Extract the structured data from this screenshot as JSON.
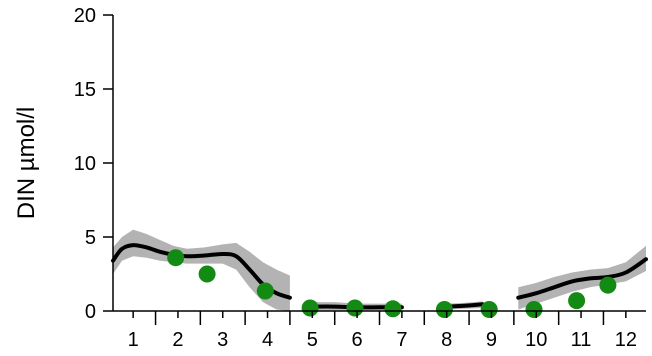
{
  "chart_data": {
    "type": "line",
    "ylabel": "DIN µmol/l",
    "xlabel": "",
    "xlim": [
      0.55,
      12.45
    ],
    "ylim": [
      0,
      20
    ],
    "x_ticks": [
      1,
      2,
      3,
      4,
      5,
      6,
      7,
      8,
      9,
      10,
      11,
      12
    ],
    "y_ticks": [
      0,
      5,
      10,
      15,
      20
    ],
    "grid": false,
    "colors": {
      "line": "#000000",
      "band": "#b3b3b3",
      "points": "#138a13"
    },
    "series": [
      {
        "type": "line-with-band",
        "segments": [
          {
            "x": [
              0.55,
              0.75,
              1.0,
              1.3,
              1.6,
              1.9,
              2.2,
              2.6,
              3.0,
              3.3,
              3.6,
              3.9,
              4.2,
              4.5
            ],
            "y": [
              3.4,
              4.2,
              4.45,
              4.3,
              4.0,
              3.8,
              3.7,
              3.75,
              3.85,
              3.7,
              2.8,
              1.8,
              1.2,
              0.9
            ],
            "lower": [
              2.5,
              3.4,
              3.7,
              3.6,
              3.4,
              3.3,
              3.2,
              3.2,
              3.2,
              2.8,
              1.6,
              0.6,
              0.1,
              0.0
            ],
            "upper": [
              4.3,
              5.0,
              5.5,
              5.2,
              4.8,
              4.4,
              4.2,
              4.3,
              4.5,
              4.6,
              4.0,
              3.3,
              2.8,
              2.4
            ]
          },
          {
            "x": [
              5.0,
              5.5,
              6.0,
              6.5,
              7.0
            ],
            "y": [
              0.3,
              0.3,
              0.25,
              0.25,
              0.25
            ],
            "lower": [
              0.05,
              0.05,
              0.05,
              0.05,
              0.05
            ],
            "upper": [
              0.6,
              0.6,
              0.5,
              0.5,
              0.5
            ]
          },
          {
            "x": [
              8.0,
              8.4,
              8.8
            ],
            "y": [
              0.3,
              0.35,
              0.45
            ],
            "lower": [
              0.1,
              0.15,
              0.2
            ],
            "upper": [
              0.5,
              0.55,
              0.65
            ]
          },
          {
            "x": [
              9.6,
              10.0,
              10.4,
              10.8,
              11.2,
              11.6,
              12.0,
              12.45
            ],
            "y": [
              0.9,
              1.2,
              1.6,
              2.0,
              2.2,
              2.3,
              2.6,
              3.5
            ],
            "lower": [
              0.1,
              0.5,
              0.9,
              1.3,
              1.6,
              1.8,
              2.0,
              2.7
            ],
            "upper": [
              1.6,
              1.9,
              2.3,
              2.6,
              2.8,
              2.9,
              3.3,
              4.4
            ]
          }
        ]
      },
      {
        "type": "scatter",
        "x": [
          1.95,
          2.65,
          3.95,
          4.95,
          5.95,
          6.8,
          7.95,
          8.95,
          9.95,
          10.9,
          11.6
        ],
        "y": [
          3.6,
          2.5,
          1.35,
          0.2,
          0.2,
          0.15,
          0.1,
          0.1,
          0.1,
          0.7,
          1.75
        ]
      }
    ]
  }
}
